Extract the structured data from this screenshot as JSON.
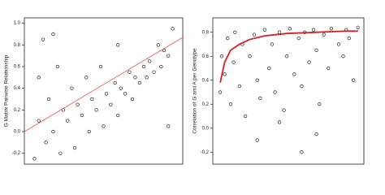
{
  "chart_data": [
    {
      "type": "scatter",
      "ylabel": "G Matrix Pairwise Relationship",
      "xlim": [
        -0.05,
        1.05
      ],
      "ylim": [
        -0.3,
        1.05
      ],
      "yticks": [
        -0.2,
        {
          "value": 0,
          "label": "0.0"
        },
        0.2,
        0.4,
        0.6,
        0.8,
        {
          "value": 1,
          "label": "1.0"
        }
      ],
      "point_color": "#000000",
      "x": [
        0.02,
        0.05,
        0.05,
        0.08,
        0.1,
        0.12,
        0.15,
        0.18,
        0.2,
        0.22,
        0.25,
        0.28,
        0.3,
        0.32,
        0.35,
        0.38,
        0.4,
        0.42,
        0.45,
        0.48,
        0.5,
        0.52,
        0.55,
        0.58,
        0.6,
        0.62,
        0.65,
        0.68,
        0.7,
        0.72,
        0.75,
        0.78,
        0.8,
        0.82,
        0.85,
        0.88,
        0.9,
        0.92,
        0.95,
        0.98,
        0.15,
        0.6,
        0.95
      ],
      "y": [
        -0.25,
        0.1,
        0.5,
        0.85,
        -0.1,
        0.3,
        0.0,
        0.6,
        -0.2,
        0.2,
        0.1,
        0.4,
        -0.15,
        0.25,
        0.15,
        0.5,
        0.0,
        0.3,
        0.2,
        0.6,
        0.05,
        0.35,
        0.25,
        0.45,
        0.15,
        0.4,
        0.35,
        0.55,
        0.3,
        0.5,
        0.45,
        0.6,
        0.5,
        0.65,
        0.55,
        0.8,
        0.6,
        0.75,
        0.7,
        0.95,
        0.9,
        0.8,
        0.05
      ],
      "fit": {
        "color": "#e8504a",
        "x": [
          -0.05,
          1.05
        ],
        "y": [
          0.0,
          0.87
        ]
      }
    },
    {
      "type": "scatter",
      "ylabel": "Correlation of G and A per Genotype",
      "xlim": [
        0,
        1.02
      ],
      "ylim": [
        -0.3,
        0.92
      ],
      "yticks": [
        -0.2,
        {
          "value": 0,
          "label": "0.0"
        },
        0.2,
        0.4,
        0.6,
        0.8
      ],
      "point_color": "#000000",
      "x": [
        0.05,
        0.06,
        0.08,
        0.1,
        0.12,
        0.14,
        0.15,
        0.18,
        0.2,
        0.22,
        0.25,
        0.28,
        0.3,
        0.32,
        0.35,
        0.38,
        0.4,
        0.42,
        0.45,
        0.48,
        0.5,
        0.52,
        0.55,
        0.58,
        0.6,
        0.62,
        0.65,
        0.68,
        0.7,
        0.72,
        0.75,
        0.78,
        0.8,
        0.85,
        0.88,
        0.9,
        0.92,
        0.95,
        0.98,
        0.3,
        0.45,
        0.6,
        0.7
      ],
      "y": [
        0.3,
        0.6,
        0.45,
        0.75,
        0.2,
        0.55,
        0.8,
        0.35,
        0.7,
        0.1,
        0.6,
        0.78,
        0.4,
        0.25,
        0.82,
        0.5,
        0.7,
        0.3,
        0.8,
        0.15,
        0.6,
        0.83,
        0.45,
        0.75,
        0.35,
        0.8,
        0.55,
        0.82,
        0.65,
        0.2,
        0.78,
        0.5,
        0.83,
        0.7,
        0.6,
        0.82,
        0.75,
        0.4,
        0.84,
        -0.1,
        0.05,
        -0.2,
        -0.05
      ],
      "fit": {
        "color": "#d62020",
        "x": [
          0.05,
          0.08,
          0.12,
          0.18,
          0.25,
          0.35,
          0.5,
          0.7,
          0.9,
          0.98
        ],
        "y": [
          0.38,
          0.55,
          0.65,
          0.7,
          0.74,
          0.77,
          0.79,
          0.8,
          0.81,
          0.81
        ]
      }
    }
  ]
}
